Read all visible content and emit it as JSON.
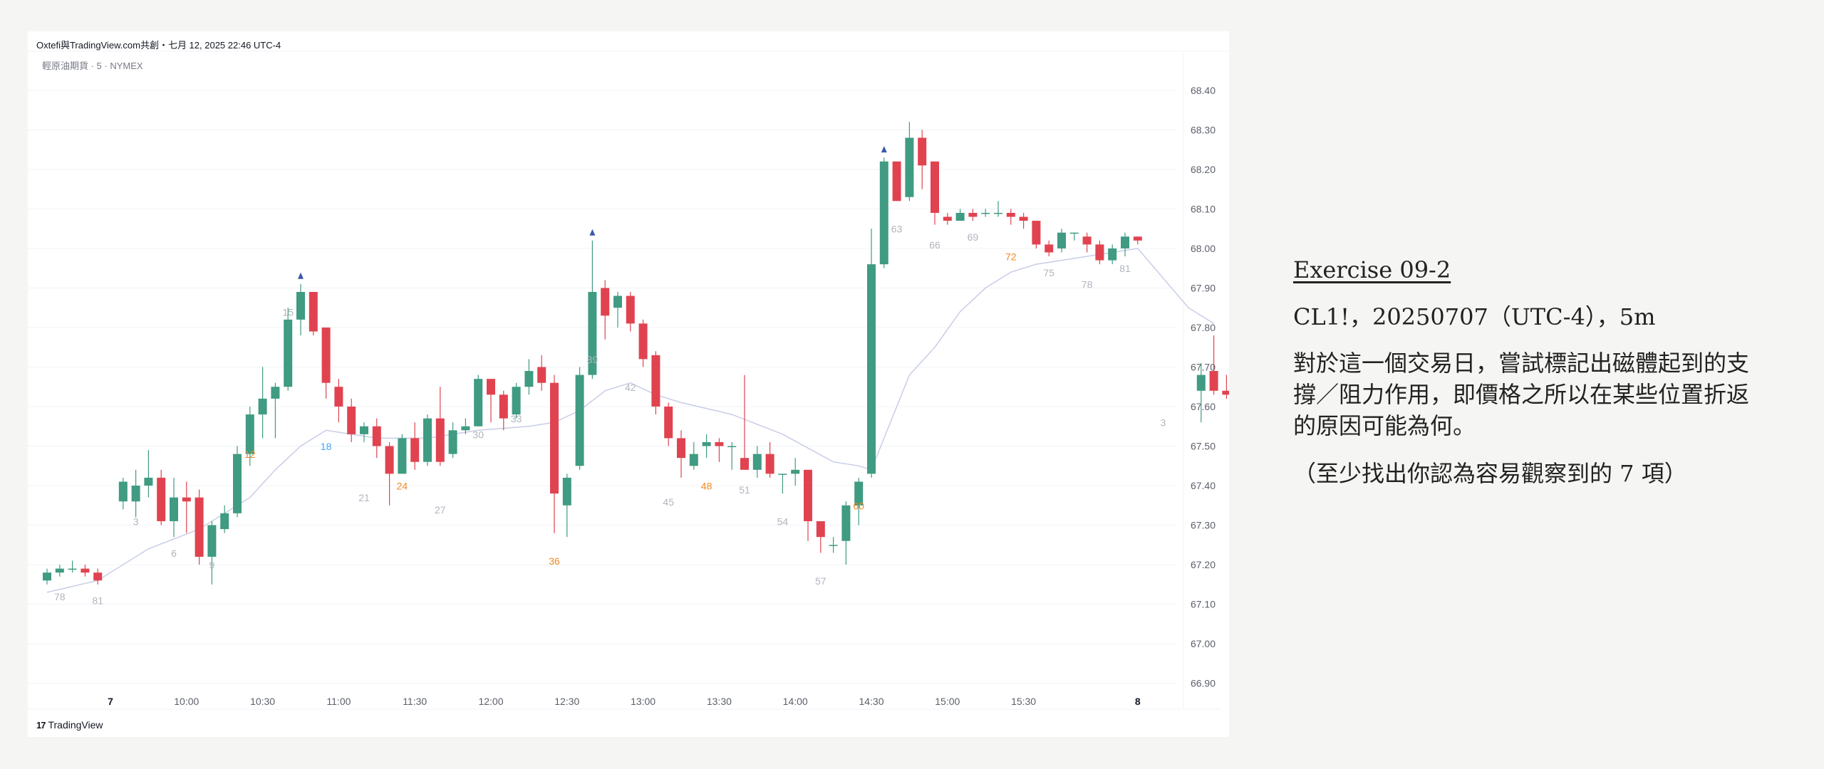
{
  "header": {
    "source_text": "Oxtefi與TradingView.com共創・七月 12, 2025 22:46 UTC-4",
    "symbol_text": "輕原油期貨 · 5 · NYMEX"
  },
  "footer": {
    "logo_mark": "17",
    "logo_text": "TradingView"
  },
  "exercise": {
    "title": "Exercise 09-2",
    "subtitle": "CL1!，20250707（UTC-4），5m",
    "question": "對於這一個交易日，嘗試標記出磁體起到的支撐／阻力作用，即價格之所以在某些位置折返的原因可能為何。",
    "note": "（至少找出你認為容易觀察到的 7 項）"
  },
  "chart_data": {
    "type": "candlestick",
    "price_axis": {
      "ylim": [
        66.82,
        68.47
      ],
      "tick_labels": [
        "68.40",
        "68.30",
        "68.20",
        "68.10",
        "68.00",
        "67.90",
        "67.80",
        "67.70",
        "67.60",
        "67.50",
        "67.40",
        "67.30",
        "67.20",
        "67.10",
        "67.00",
        "66.90"
      ]
    },
    "time_axis": {
      "tick_labels": [
        {
          "bar": 5,
          "label": "7",
          "bold": true
        },
        {
          "bar": 11,
          "label": "10:00"
        },
        {
          "bar": 17,
          "label": "10:30"
        },
        {
          "bar": 23,
          "label": "11:00"
        },
        {
          "bar": 29,
          "label": "11:30"
        },
        {
          "bar": 35,
          "label": "12:00"
        },
        {
          "bar": 41,
          "label": "12:30"
        },
        {
          "bar": 47,
          "label": "13:00"
        },
        {
          "bar": 53,
          "label": "13:30"
        },
        {
          "bar": 59,
          "label": "14:00"
        },
        {
          "bar": 65,
          "label": "14:30"
        },
        {
          "bar": 71,
          "label": "15:00"
        },
        {
          "bar": 77,
          "label": "15:30"
        },
        {
          "bar": 86,
          "label": "8",
          "bold": true
        }
      ]
    },
    "colors": {
      "up": "#3f9b82",
      "down": "#e0434f",
      "ema": "#c9cde6",
      "marker": "#3b58a8",
      "grid": "#f0f3fa"
    },
    "candles": [
      [
        67.16,
        67.18,
        67.19,
        67.15
      ],
      [
        67.18,
        67.19,
        67.2,
        67.17
      ],
      [
        67.19,
        67.19,
        67.21,
        67.18
      ],
      [
        67.19,
        67.18,
        67.2,
        67.17
      ],
      [
        67.18,
        67.16,
        67.19,
        67.15
      ],
      [
        null,
        null,
        null,
        null
      ],
      [
        67.36,
        67.41,
        67.42,
        67.34
      ],
      [
        67.36,
        67.4,
        67.44,
        67.32
      ],
      [
        67.4,
        67.42,
        67.49,
        67.37
      ],
      [
        67.42,
        67.31,
        67.44,
        67.3
      ],
      [
        67.31,
        67.37,
        67.42,
        67.27
      ],
      [
        67.37,
        67.36,
        67.41,
        67.28
      ],
      [
        67.37,
        67.22,
        67.39,
        67.2
      ],
      [
        67.22,
        67.3,
        67.31,
        67.15
      ],
      [
        67.29,
        67.33,
        67.35,
        67.28
      ],
      [
        67.33,
        67.48,
        67.5,
        67.32
      ],
      [
        67.48,
        67.58,
        67.6,
        67.45
      ],
      [
        67.58,
        67.62,
        67.7,
        67.52
      ],
      [
        67.62,
        67.65,
        67.66,
        67.52
      ],
      [
        67.65,
        67.82,
        67.85,
        67.64
      ],
      [
        67.82,
        67.89,
        67.91,
        67.78
      ],
      [
        67.89,
        67.79,
        67.89,
        67.78
      ],
      [
        67.8,
        67.66,
        67.8,
        67.62
      ],
      [
        67.65,
        67.6,
        67.67,
        67.56
      ],
      [
        67.6,
        67.53,
        67.62,
        67.51
      ],
      [
        67.53,
        67.55,
        67.56,
        67.51
      ],
      [
        67.55,
        67.5,
        67.57,
        67.47
      ],
      [
        67.5,
        67.43,
        67.51,
        67.35
      ],
      [
        67.43,
        67.52,
        67.53,
        67.43
      ],
      [
        67.52,
        67.46,
        67.56,
        67.44
      ],
      [
        67.46,
        67.57,
        67.58,
        67.45
      ],
      [
        67.57,
        67.46,
        67.65,
        67.45
      ],
      [
        67.48,
        67.54,
        67.56,
        67.47
      ],
      [
        67.54,
        67.55,
        67.57,
        67.53
      ],
      [
        67.55,
        67.67,
        67.68,
        67.55
      ],
      [
        67.67,
        67.63,
        67.67,
        67.56
      ],
      [
        67.63,
        67.57,
        67.64,
        67.54
      ],
      [
        67.58,
        67.65,
        67.66,
        67.57
      ],
      [
        67.65,
        67.69,
        67.72,
        67.63
      ],
      [
        67.7,
        67.66,
        67.73,
        67.64
      ],
      [
        67.66,
        67.38,
        67.68,
        67.28
      ],
      [
        67.35,
        67.42,
        67.43,
        67.27
      ],
      [
        67.45,
        67.68,
        67.7,
        67.44
      ],
      [
        67.68,
        67.89,
        68.02,
        67.67
      ],
      [
        67.9,
        67.83,
        67.92,
        67.77
      ],
      [
        67.85,
        67.88,
        67.89,
        67.8
      ],
      [
        67.88,
        67.81,
        67.89,
        67.79
      ],
      [
        67.81,
        67.72,
        67.82,
        67.7
      ],
      [
        67.73,
        67.6,
        67.74,
        67.58
      ],
      [
        67.6,
        67.52,
        67.61,
        67.5
      ],
      [
        67.52,
        67.47,
        67.54,
        67.42
      ],
      [
        67.45,
        67.48,
        67.51,
        67.44
      ],
      [
        67.5,
        67.51,
        67.53,
        67.47
      ],
      [
        67.51,
        67.5,
        67.52,
        67.46
      ],
      [
        67.5,
        67.5,
        67.51,
        67.44
      ],
      [
        67.47,
        67.44,
        67.68,
        67.44
      ],
      [
        67.44,
        67.48,
        67.5,
        67.42
      ],
      [
        67.48,
        67.43,
        67.51,
        67.42
      ],
      [
        67.43,
        67.43,
        67.43,
        67.38
      ],
      [
        67.43,
        67.44,
        67.47,
        67.4
      ],
      [
        67.44,
        67.31,
        67.44,
        67.26
      ],
      [
        67.31,
        67.27,
        67.31,
        67.23
      ],
      [
        67.25,
        67.25,
        67.27,
        67.23
      ],
      [
        67.26,
        67.35,
        67.36,
        67.2
      ],
      [
        67.35,
        67.41,
        67.42,
        67.3
      ],
      [
        67.43,
        67.96,
        68.05,
        67.42
      ],
      [
        67.96,
        68.22,
        68.23,
        67.95
      ],
      [
        68.22,
        68.12,
        68.22,
        68.12
      ],
      [
        68.13,
        68.28,
        68.32,
        68.12
      ],
      [
        68.28,
        68.21,
        68.3,
        68.15
      ],
      [
        68.22,
        68.09,
        68.22,
        68.06
      ],
      [
        68.08,
        68.07,
        68.09,
        68.06
      ],
      [
        68.07,
        68.09,
        68.1,
        68.07
      ],
      [
        68.09,
        68.08,
        68.1,
        68.07
      ],
      [
        68.09,
        68.09,
        68.1,
        68.08
      ],
      [
        68.09,
        68.09,
        68.12,
        68.08
      ],
      [
        68.09,
        68.08,
        68.1,
        68.06
      ],
      [
        68.08,
        68.07,
        68.09,
        68.05
      ],
      [
        68.07,
        68.01,
        68.07,
        68.0
      ],
      [
        68.01,
        67.99,
        68.02,
        67.98
      ],
      [
        68.0,
        68.04,
        68.05,
        67.99
      ],
      [
        68.04,
        68.04,
        68.04,
        68.02
      ],
      [
        68.03,
        68.01,
        68.04,
        67.99
      ],
      [
        68.01,
        67.97,
        68.02,
        67.96
      ],
      [
        67.97,
        68.0,
        68.01,
        67.96
      ],
      [
        68.0,
        68.03,
        68.04,
        67.98
      ],
      [
        68.03,
        68.02,
        68.03,
        68.01
      ],
      [
        null,
        null,
        null,
        null
      ],
      [
        null,
        null,
        null,
        null
      ],
      [
        null,
        null,
        null,
        null
      ],
      [
        null,
        null,
        null,
        null
      ],
      [
        67.64,
        67.68,
        67.71,
        67.56
      ],
      [
        67.69,
        67.64,
        67.78,
        67.63
      ],
      [
        67.64,
        67.63,
        67.68,
        67.62
      ],
      [
        67.64,
        67.72,
        67.75,
        67.6
      ]
    ],
    "ema": [
      [
        0,
        67.13
      ],
      [
        4,
        67.16
      ],
      [
        8,
        67.24
      ],
      [
        12,
        67.29
      ],
      [
        16,
        67.37
      ],
      [
        18,
        67.44
      ],
      [
        20,
        67.5
      ],
      [
        22,
        67.54
      ],
      [
        26,
        67.52
      ],
      [
        30,
        67.52
      ],
      [
        34,
        67.54
      ],
      [
        38,
        67.55
      ],
      [
        40,
        67.56
      ],
      [
        42,
        67.59
      ],
      [
        44,
        67.64
      ],
      [
        46,
        67.66
      ],
      [
        48,
        67.63
      ],
      [
        50,
        67.61
      ],
      [
        54,
        67.58
      ],
      [
        58,
        67.53
      ],
      [
        62,
        67.46
      ],
      [
        64,
        67.45
      ],
      [
        65,
        67.44
      ],
      [
        66,
        67.52
      ],
      [
        68,
        67.68
      ],
      [
        70,
        67.75
      ],
      [
        72,
        67.84
      ],
      [
        74,
        67.9
      ],
      [
        76,
        67.94
      ],
      [
        78,
        67.96
      ],
      [
        80,
        67.97
      ],
      [
        84,
        67.99
      ],
      [
        86,
        68.0
      ],
      [
        90,
        67.85
      ],
      [
        92,
        67.81
      ]
    ],
    "bar_labels": [
      {
        "bar": 1,
        "price": 67.11,
        "text": "78",
        "color": "#b2b5be"
      },
      {
        "bar": 4,
        "price": 67.1,
        "text": "81",
        "color": "#b2b5be"
      },
      {
        "bar": 7,
        "price": 67.3,
        "text": "3",
        "color": "#b2b5be"
      },
      {
        "bar": 10,
        "price": 67.22,
        "text": "6",
        "color": "#b2b5be"
      },
      {
        "bar": 13,
        "price": 67.19,
        "text": "9",
        "color": "#b2b5be"
      },
      {
        "bar": 16,
        "price": 67.47,
        "text": "12",
        "color": "#f08a24"
      },
      {
        "bar": 19,
        "price": 67.83,
        "text": "15",
        "color": "#b2b5be"
      },
      {
        "bar": 22,
        "price": 67.49,
        "text": "18",
        "color": "#42a5f5"
      },
      {
        "bar": 25,
        "price": 67.36,
        "text": "21",
        "color": "#b2b5be"
      },
      {
        "bar": 28,
        "price": 67.39,
        "text": "24",
        "color": "#f08a24"
      },
      {
        "bar": 31,
        "price": 67.33,
        "text": "27",
        "color": "#b2b5be"
      },
      {
        "bar": 34,
        "price": 67.52,
        "text": "30",
        "color": "#b2b5be"
      },
      {
        "bar": 37,
        "price": 67.56,
        "text": "33",
        "color": "#b2b5be"
      },
      {
        "bar": 40,
        "price": 67.2,
        "text": "36",
        "color": "#f08a24"
      },
      {
        "bar": 43,
        "price": 67.71,
        "text": "39",
        "color": "#b2b5be"
      },
      {
        "bar": 46,
        "price": 67.64,
        "text": "42",
        "color": "#b2b5be"
      },
      {
        "bar": 49,
        "price": 67.35,
        "text": "45",
        "color": "#b2b5be"
      },
      {
        "bar": 52,
        "price": 67.39,
        "text": "48",
        "color": "#f08a24"
      },
      {
        "bar": 55,
        "price": 67.38,
        "text": "51",
        "color": "#b2b5be"
      },
      {
        "bar": 58,
        "price": 67.3,
        "text": "54",
        "color": "#b2b5be"
      },
      {
        "bar": 61,
        "price": 67.15,
        "text": "57",
        "color": "#b2b5be"
      },
      {
        "bar": 64,
        "price": 67.34,
        "text": "60",
        "color": "#f08a24"
      },
      {
        "bar": 67,
        "price": 68.04,
        "text": "63",
        "color": "#b2b5be"
      },
      {
        "bar": 70,
        "price": 68.0,
        "text": "66",
        "color": "#b2b5be"
      },
      {
        "bar": 73,
        "price": 68.02,
        "text": "69",
        "color": "#b2b5be"
      },
      {
        "bar": 76,
        "price": 67.97,
        "text": "72",
        "color": "#f08a24"
      },
      {
        "bar": 79,
        "price": 67.93,
        "text": "75",
        "color": "#b2b5be"
      },
      {
        "bar": 82,
        "price": 67.9,
        "text": "78",
        "color": "#b2b5be"
      },
      {
        "bar": 85,
        "price": 67.94,
        "text": "81",
        "color": "#b2b5be"
      },
      {
        "bar": 88,
        "price": 67.55,
        "text": "3",
        "color": "#b2b5be"
      }
    ],
    "markers": [
      {
        "bar": 20,
        "price": 67.93
      },
      {
        "bar": 43,
        "price": 68.04
      },
      {
        "bar": 66,
        "price": 68.25
      }
    ]
  }
}
